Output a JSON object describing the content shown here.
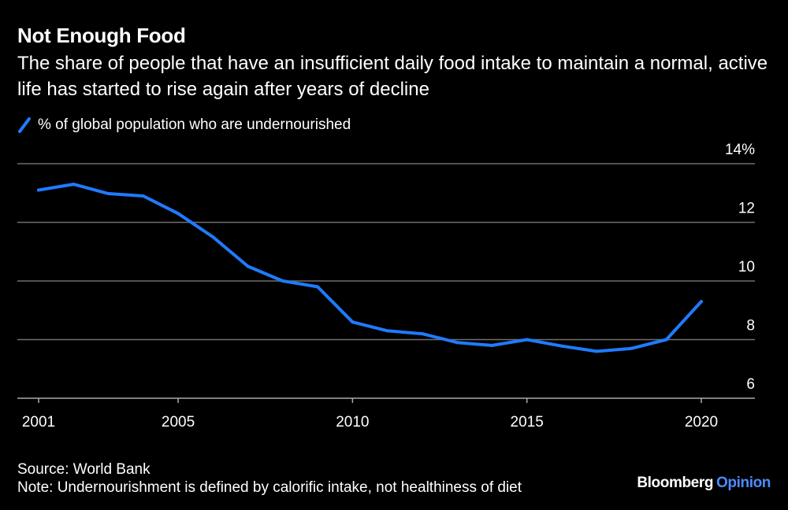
{
  "header": {
    "title": "Not Enough Food",
    "subtitle": "The share of people that have an insufficient daily food intake to maintain a normal, active life has started to rise again after years of decline"
  },
  "colors": {
    "background": "#000000",
    "text": "#ffffff",
    "line": "#1f7bff",
    "grid": "#6e6e6e",
    "axis": "#aaaaaa",
    "brand_accent": "#4d8bff"
  },
  "chart_data": {
    "type": "line",
    "title": "Not Enough Food",
    "xlabel": "",
    "ylabel": "",
    "x": [
      2001,
      2002,
      2003,
      2004,
      2005,
      2006,
      2007,
      2008,
      2009,
      2010,
      2011,
      2012,
      2013,
      2014,
      2015,
      2016,
      2017,
      2018,
      2019,
      2020
    ],
    "series": [
      {
        "name": "% of global population who are undernourished",
        "values": [
          13.1,
          13.3,
          12.98,
          12.9,
          12.3,
          11.5,
          10.5,
          10.0,
          9.8,
          8.6,
          8.3,
          8.2,
          7.9,
          7.8,
          8.0,
          7.78,
          7.6,
          7.7,
          8.0,
          9.3
        ]
      }
    ],
    "ylim": [
      6,
      14
    ],
    "yticks": [
      6,
      8,
      10,
      12,
      14
    ],
    "ytick_labels": [
      "6",
      "8",
      "10",
      "12",
      "14%"
    ],
    "xticks": [
      2001,
      2005,
      2010,
      2015,
      2020
    ],
    "xtick_labels": [
      "2001",
      "2005",
      "2010",
      "2015",
      "2020"
    ],
    "grid": true,
    "legend_position": "top-left"
  },
  "footer": {
    "source": "Source: World Bank",
    "note": "Note: Undernourishment is defined by calorific intake, not healthiness of diet"
  },
  "brand": {
    "name": "Bloomberg",
    "section": "Opinion"
  }
}
